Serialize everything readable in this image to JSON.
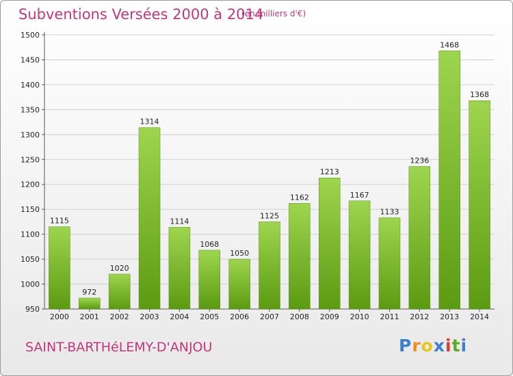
{
  "header": {
    "title": "Subventions Versées 2000 à 2014",
    "subtitle": "(en milliers d'€)"
  },
  "footer": {
    "place": "SAINT-BARTHéLEMY-D'ANJOU",
    "logo_letters": [
      "P",
      "r",
      "o",
      "x",
      "i",
      "t",
      "i"
    ],
    "logo_colors": [
      "#3a7fd0",
      "#f08c1a",
      "#e6c61c",
      "#3a7fd0",
      "#e03a2a",
      "#5aaa2a",
      "#3a7fd0"
    ]
  },
  "chart_data": {
    "type": "bar",
    "title": "Subventions Versées 2000 à 2014",
    "subtitle": "(en milliers d'€)",
    "categories": [
      "2000",
      "2001",
      "2002",
      "2003",
      "2004",
      "2005",
      "2006",
      "2007",
      "2008",
      "2009",
      "2010",
      "2011",
      "2012",
      "2013",
      "2014"
    ],
    "values": [
      1115,
      972,
      1020,
      1314,
      1114,
      1068,
      1050,
      1125,
      1162,
      1213,
      1167,
      1133,
      1236,
      1468,
      1368
    ],
    "ylim": [
      950,
      1500
    ],
    "yticks": [
      950,
      1000,
      1050,
      1100,
      1150,
      1200,
      1250,
      1300,
      1350,
      1400,
      1450,
      1500
    ],
    "grid": true,
    "bar_color_top": "#9ed54f",
    "bar_color_bottom": "#5c9a12"
  }
}
